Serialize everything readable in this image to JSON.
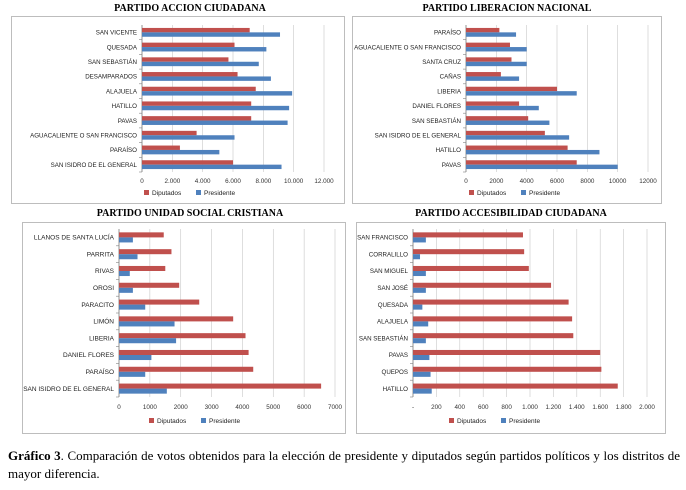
{
  "colors": {
    "diputados": "#c0504d",
    "presidente": "#4f81bd",
    "grid": "#c8c8c8",
    "axis": "#808080"
  },
  "chart_data": [
    {
      "type": "bar",
      "title": "PARTIDO ACCION CIUDADANA",
      "categories": [
        "SAN ISIDRO DE EL GENERAL",
        "PARAÍSO",
        "AGUACALIENTE O SAN FRANCISCO",
        "PAVAS",
        "HATILLO",
        "ALAJUELA",
        "DESAMPARADOS",
        "SAN SEBASTIÁN",
        "QUESADA",
        "SAN VICENTE"
      ],
      "series": [
        {
          "name": "Diputados",
          "values": [
            6000,
            2500,
            3600,
            7200,
            7200,
            7500,
            6300,
            5700,
            6100,
            7100
          ]
        },
        {
          "name": "Presidente",
          "values": [
            9200,
            5100,
            6100,
            9600,
            9700,
            9900,
            8500,
            7700,
            8200,
            9100
          ]
        }
      ],
      "ticks": [
        "0",
        "2.000",
        "4.000",
        "6.000",
        "8.000",
        "10.000",
        "12.000"
      ],
      "xlim": [
        0,
        12000
      ],
      "legend": "bottom-left"
    },
    {
      "type": "bar",
      "title": "PARTIDO LIBERACION NACIONAL",
      "categories": [
        "PAVAS",
        "HATILLO",
        "SAN ISIDRO DE EL GENERAL",
        "SAN SEBASTIÁN",
        "DANIEL FLORES",
        "LIBERIA",
        "CAÑAS",
        "SANTA CRUZ",
        "AGUACALIENTE O SAN FRANCISCO",
        "PARAÍSO"
      ],
      "series": [
        {
          "name": "Diputados",
          "values": [
            7300,
            6700,
            5200,
            4100,
            3500,
            6000,
            2300,
            3000,
            2900,
            2200
          ]
        },
        {
          "name": "Presidente",
          "values": [
            10000,
            8800,
            6800,
            5500,
            4800,
            7300,
            3500,
            4000,
            4000,
            3300
          ]
        }
      ],
      "ticks": [
        "0",
        "2000",
        "4000",
        "6000",
        "8000",
        "10000",
        "12000"
      ],
      "xlim": [
        0,
        12000
      ],
      "legend": "bottom-left"
    },
    {
      "type": "bar",
      "title": "PARTIDO UNIDAD SOCIAL CRISTIANA",
      "categories": [
        "SAN ISIDRO DE EL GENERAL",
        "PARAÍSO",
        "DANIEL FLORES",
        "LIBERIA",
        "LIMÓN",
        "PARACITO",
        "OROSI",
        "RIVAS",
        "PARRITA",
        "LLANOS DE SANTA LUCÍA"
      ],
      "series": [
        {
          "name": "Diputados",
          "values": [
            6550,
            4350,
            4200,
            4100,
            3700,
            2600,
            1950,
            1500,
            1700,
            1450
          ]
        },
        {
          "name": "Presidente",
          "values": [
            1550,
            850,
            1050,
            1850,
            1800,
            850,
            450,
            350,
            600,
            450
          ]
        }
      ],
      "ticks": [
        "0",
        "1000",
        "2000",
        "3000",
        "4000",
        "5000",
        "6000",
        "7000"
      ],
      "xlim": [
        0,
        7000
      ],
      "legend": "bottom-center"
    },
    {
      "type": "bar",
      "title": "PARTIDO ACCESIBILIDAD CIUDADANA",
      "categories": [
        "HATILLO",
        "QUEPOS",
        "PAVAS",
        "SAN SEBASTIÁN",
        "ALAJUELA",
        "QUESADA",
        "SAN JOSÉ",
        "SAN MIGUEL",
        "CORRALILLO",
        "SAN FRANCISCO"
      ],
      "series": [
        {
          "name": "Diputados",
          "values": [
            1750,
            1610,
            1600,
            1370,
            1360,
            1330,
            1180,
            990,
            950,
            940
          ]
        },
        {
          "name": "Presidente",
          "values": [
            160,
            150,
            140,
            110,
            130,
            80,
            110,
            110,
            60,
            110
          ]
        }
      ],
      "ticks": [
        "-",
        "200",
        "400",
        "600",
        "800",
        "1.000",
        "1.200",
        "1.400",
        "1.600",
        "1.800",
        "2.000"
      ],
      "xlim": [
        0,
        2000
      ],
      "legend": "bottom-left"
    }
  ],
  "caption": {
    "label": "Gráfico 3",
    "text": ". Comparación de votos obtenidos para la elección de presidente y diputados según partidos políticos y los distritos de mayor diferencia."
  }
}
